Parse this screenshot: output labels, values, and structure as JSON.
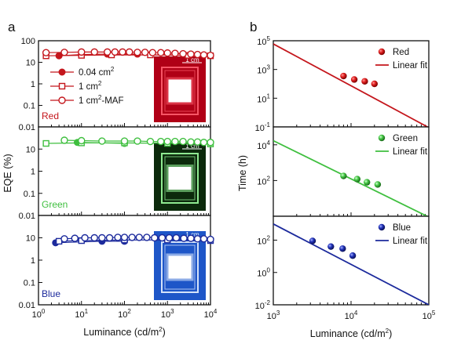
{
  "panel_labels": {
    "a": "a",
    "b": "b"
  },
  "colors": {
    "red": "#c4161c",
    "green": "#3fbf3f",
    "blue": "#1c2a9c",
    "axis": "#111111"
  },
  "chart_data": [
    {
      "id": "a",
      "type": "scatter",
      "xlabel_text": "Luminance (cd/m",
      "xlabel_sup": "2",
      "xlabel_close": ")",
      "ylabel": "EQE (%)",
      "xscale": "log",
      "yscale": "log",
      "xlim": [
        1,
        10000
      ],
      "ylim": [
        0.01,
        100
      ],
      "x_tick_values": [
        1,
        10,
        100,
        1000,
        10000
      ],
      "x_ticks": [
        {
          "base": "10",
          "exp": "0"
        },
        {
          "base": "10",
          "exp": "1"
        },
        {
          "base": "10",
          "exp": "2"
        },
        {
          "base": "10",
          "exp": "3"
        },
        {
          "base": "10",
          "exp": "4"
        }
      ],
      "y_tick_values": [
        100,
        10,
        1,
        0.1,
        0.01
      ],
      "y_ticks": [
        "100",
        "10",
        "1",
        "0.1",
        "0.01"
      ],
      "legend_placement": "top-left of Red subpanel",
      "legend": [
        {
          "text": "0.04 cm",
          "sup": "2",
          "marker": "filled-circle"
        },
        {
          "text": "1 cm",
          "sup": "2",
          "marker": "open-square"
        },
        {
          "text": "1 cm",
          "sup": "2",
          "suffix": "-MAF",
          "marker": "open-circle"
        }
      ],
      "subpanels": [
        {
          "name": "Red",
          "color": "#c4161c",
          "inset": {
            "scale_label": "1 cm",
            "bg": "#b00016",
            "glow": "#ff5f6f"
          },
          "series": [
            {
              "name": "0.04 cm2",
              "marker": "filled-circle",
              "x": [
                3,
                10,
                40,
                200
              ],
              "y": [
                20,
                23,
                24,
                24
              ]
            },
            {
              "name": "1 cm2",
              "marker": "open-square",
              "x": [
                1.5,
                10,
                50,
                400,
                3000,
                10000
              ],
              "y": [
                20,
                21,
                22,
                22,
                21,
                20
              ]
            },
            {
              "name": "1 cm2-MAF",
              "marker": "open-circle",
              "x": [
                1.5,
                4,
                10,
                20,
                40,
                60,
                90,
                130,
                200,
                300,
                450,
                700,
                1000,
                1500,
                2300,
                3500,
                5000,
                7000,
                10000
              ],
              "y": [
                28,
                29,
                30,
                30,
                30,
                30,
                30,
                30,
                29,
                29,
                28,
                28,
                27,
                26,
                25,
                24,
                23,
                22,
                21
              ]
            }
          ]
        },
        {
          "name": "Green",
          "color": "#3fbf3f",
          "inset": {
            "scale_label": "1 cm",
            "bg": "#0c2a0c",
            "glow": "#9dffa0"
          },
          "series": [
            {
              "name": "0.04 cm2",
              "marker": "filled-circle",
              "x": [
                8,
                100
              ],
              "y": [
                20,
                18
              ]
            },
            {
              "name": "1 cm2",
              "marker": "open-square",
              "x": [
                1.5,
                10,
                100,
                1000,
                10000
              ],
              "y": [
                18,
                19,
                19,
                18,
                17
              ]
            },
            {
              "name": "1 cm2-MAF",
              "marker": "open-circle",
              "x": [
                4,
                10,
                30,
                100,
                200,
                400,
                700,
                1000,
                1500,
                2300,
                3500,
                5000,
                7000,
                10000
              ],
              "y": [
                25,
                24,
                23,
                23,
                23,
                22,
                22,
                22,
                22,
                22,
                21,
                21,
                20,
                20
              ]
            }
          ]
        },
        {
          "name": "Blue",
          "color": "#1c2a9c",
          "inset": {
            "scale_label": "1 cm",
            "bg": "#1e56c8",
            "glow": "#e8f2ff"
          },
          "series": [
            {
              "name": "0.04 cm2",
              "marker": "filled-circle",
              "x": [
                2.5,
                30,
                100
              ],
              "y": [
                6,
                7,
                7
              ]
            },
            {
              "name": "1 cm2",
              "marker": "open-square",
              "x": [
                3,
                10,
                100,
                1000,
                10000
              ],
              "y": [
                7,
                7.5,
                8,
                8,
                7.5
              ]
            },
            {
              "name": "1 cm2-MAF",
              "marker": "open-circle",
              "x": [
                4,
                7,
                12,
                20,
                30,
                45,
                70,
                100,
                150,
                220,
                330,
                500,
                750,
                1100,
                1600,
                2400,
                3500,
                5000,
                7000,
                10000
              ],
              "y": [
                9,
                9.5,
                10,
                10,
                10,
                10,
                10.5,
                10.5,
                10.5,
                10.5,
                10.5,
                10,
                10,
                10,
                10,
                9.5,
                9.5,
                9,
                9,
                8.5
              ]
            }
          ]
        }
      ]
    },
    {
      "id": "b",
      "type": "scatter",
      "xlabel_text": "Luminance (cd/m",
      "xlabel_sup": "2",
      "xlabel_close": ")",
      "ylabel": "Time (h)",
      "xscale": "log",
      "yscale": "log",
      "xlim": [
        1000,
        100000
      ],
      "x_tick_values": [
        1000,
        10000,
        100000
      ],
      "x_ticks": [
        {
          "base": "10",
          "exp": "3"
        },
        {
          "base": "10",
          "exp": "4"
        },
        {
          "base": "10",
          "exp": "5"
        }
      ],
      "legend_placement": "top-right of each subpanel",
      "subpanels": [
        {
          "name": "Red",
          "color": "#c4161c",
          "ylim": [
            0.1,
            100000
          ],
          "y_tick_values": [
            100000,
            1000,
            10,
            0.1
          ],
          "y_ticks": [
            {
              "base": "10",
              "exp": "5"
            },
            {
              "base": "10",
              "exp": "3"
            },
            {
              "base": "10",
              "exp": "1"
            },
            {
              "base": "10",
              "exp": "-1"
            }
          ],
          "legend": [
            {
              "text": "Red",
              "marker": "sphere"
            },
            {
              "text": "Linear fit",
              "marker": "line"
            }
          ],
          "points": {
            "x": [
              8000,
              11000,
              15000,
              20000
            ],
            "y": [
              350,
              200,
              150,
              100
            ]
          },
          "fit": {
            "x": [
              1000,
              100000
            ],
            "y": [
              60000,
              0.09
            ]
          }
        },
        {
          "name": "Green",
          "color": "#3fbf3f",
          "ylim": [
            1,
            100000
          ],
          "y_tick_values": [
            10000,
            100
          ],
          "y_ticks": [
            {
              "base": "10",
              "exp": "4"
            },
            {
              "base": "10",
              "exp": "2"
            }
          ],
          "legend": [
            {
              "text": "Green",
              "marker": "sphere"
            },
            {
              "text": "Linear fit",
              "marker": "line"
            }
          ],
          "points": {
            "x": [
              8000,
              12000,
              16000,
              22000
            ],
            "y": [
              180,
              120,
              80,
              60
            ]
          },
          "fit": {
            "x": [
              1000,
              100000
            ],
            "y": [
              17000,
              0.9
            ]
          }
        },
        {
          "name": "Blue",
          "color": "#1c2a9c",
          "ylim": [
            0.01,
            3000
          ],
          "y_tick_values": [
            100,
            1,
            0.01
          ],
          "y_ticks": [
            {
              "base": "10",
              "exp": "2"
            },
            {
              "base": "10",
              "exp": "0"
            },
            {
              "base": "10",
              "exp": "-2"
            }
          ],
          "bottom_tick": {
            "base": "10",
            "exp": "-2"
          },
          "legend": [
            {
              "text": "Blue",
              "marker": "sphere"
            },
            {
              "text": "Linear fit",
              "marker": "line"
            }
          ],
          "points": {
            "x": [
              3200,
              5500,
              7800,
              10500
            ],
            "y": [
              90,
              40,
              30,
              11
            ]
          },
          "fit": {
            "x": [
              1000,
              100000
            ],
            "y": [
              1000,
              0.01
            ]
          }
        }
      ]
    }
  ]
}
